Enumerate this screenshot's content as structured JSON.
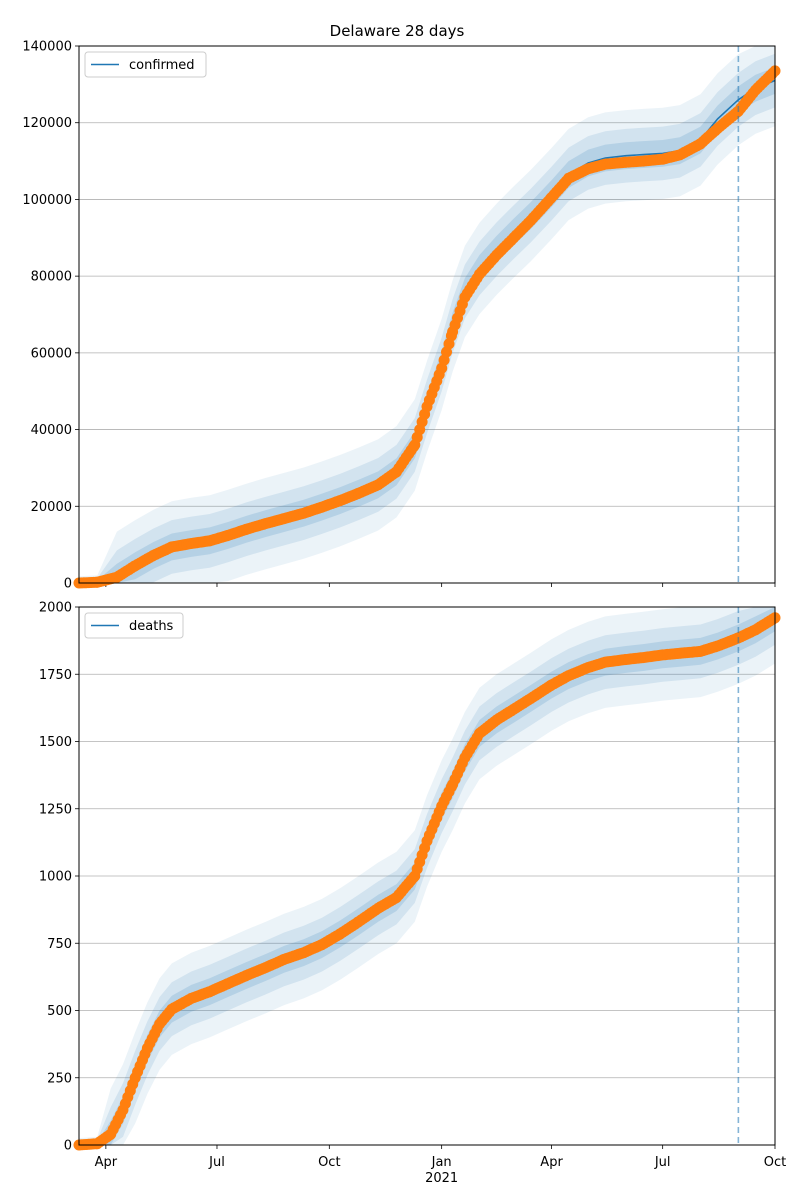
{
  "chart_data": [
    {
      "type": "line",
      "title": "Delaware 28 days",
      "series": [
        {
          "name": "confirmed",
          "kind": "model-line",
          "color": "#1f77b4"
        },
        {
          "kind": "observed-points",
          "color": "#ff7f0e"
        }
      ],
      "ylim": [
        0,
        140000
      ],
      "yticks": [
        0,
        20000,
        40000,
        60000,
        80000,
        100000,
        120000,
        140000
      ],
      "ytick_labels": [
        "0",
        "20000",
        "40000",
        "60000",
        "80000",
        "100000",
        "120000",
        "140000"
      ],
      "grid": "horizontal",
      "legend": "top-left",
      "forecast_start": "2021-09-01",
      "model_points": [
        [
          "2020-03-10",
          0
        ],
        [
          "2020-03-25",
          200
        ],
        [
          "2020-04-10",
          1500
        ],
        [
          "2020-04-25",
          4500
        ],
        [
          "2020-05-10",
          7200
        ],
        [
          "2020-05-25",
          9400
        ],
        [
          "2020-06-10",
          10300
        ],
        [
          "2020-06-25",
          11000
        ],
        [
          "2020-07-10",
          12400
        ],
        [
          "2020-07-25",
          14000
        ],
        [
          "2020-08-10",
          15500
        ],
        [
          "2020-08-25",
          16800
        ],
        [
          "2020-09-10",
          18200
        ],
        [
          "2020-09-25",
          19800
        ],
        [
          "2020-10-10",
          21500
        ],
        [
          "2020-10-25",
          23400
        ],
        [
          "2020-11-10",
          25600
        ],
        [
          "2020-11-25",
          29000
        ],
        [
          "2020-12-10",
          36000
        ],
        [
          "2020-12-20",
          46000
        ],
        [
          "2021-01-01",
          57000
        ],
        [
          "2021-01-10",
          67000
        ],
        [
          "2021-01-20",
          76000
        ],
        [
          "2021-02-01",
          82000
        ],
        [
          "2021-02-15",
          87000
        ],
        [
          "2021-03-01",
          91500
        ],
        [
          "2021-03-15",
          95800
        ],
        [
          "2021-04-01",
          101500
        ],
        [
          "2021-04-15",
          106500
        ],
        [
          "2021-05-01",
          109500
        ],
        [
          "2021-05-15",
          110800
        ],
        [
          "2021-06-01",
          111400
        ],
        [
          "2021-06-15",
          111700
        ],
        [
          "2021-07-01",
          112000
        ],
        [
          "2021-07-15",
          112700
        ],
        [
          "2021-08-01",
          115500
        ],
        [
          "2021-08-15",
          121000
        ],
        [
          "2021-09-01",
          126000
        ],
        [
          "2021-09-15",
          129000
        ],
        [
          "2021-10-01",
          131000
        ]
      ],
      "observed_points": [
        [
          "2020-03-10",
          0
        ],
        [
          "2020-03-25",
          200
        ],
        [
          "2020-04-10",
          1500
        ],
        [
          "2020-04-25",
          4500
        ],
        [
          "2020-05-10",
          7200
        ],
        [
          "2020-05-25",
          9400
        ],
        [
          "2020-06-10",
          10300
        ],
        [
          "2020-06-25",
          11000
        ],
        [
          "2020-07-10",
          12400
        ],
        [
          "2020-07-25",
          14000
        ],
        [
          "2020-08-10",
          15500
        ],
        [
          "2020-08-25",
          16800
        ],
        [
          "2020-09-10",
          18200
        ],
        [
          "2020-09-25",
          19800
        ],
        [
          "2020-10-10",
          21500
        ],
        [
          "2020-10-25",
          23400
        ],
        [
          "2020-11-10",
          25600
        ],
        [
          "2020-11-25",
          29000
        ],
        [
          "2020-12-10",
          36000
        ],
        [
          "2020-12-20",
          46000
        ],
        [
          "2021-01-01",
          56000
        ],
        [
          "2021-01-10",
          65500
        ],
        [
          "2021-01-20",
          74500
        ],
        [
          "2021-02-01",
          80500
        ],
        [
          "2021-02-15",
          85500
        ],
        [
          "2021-03-01",
          90000
        ],
        [
          "2021-03-15",
          94500
        ],
        [
          "2021-04-01",
          100500
        ],
        [
          "2021-04-15",
          105500
        ],
        [
          "2021-05-01",
          108000
        ],
        [
          "2021-05-15",
          109200
        ],
        [
          "2021-06-01",
          109700
        ],
        [
          "2021-06-15",
          110000
        ],
        [
          "2021-07-01",
          110500
        ],
        [
          "2021-07-15",
          111600
        ],
        [
          "2021-08-01",
          114500
        ],
        [
          "2021-08-15",
          118500
        ],
        [
          "2021-09-01",
          123000
        ],
        [
          "2021-09-15",
          128500
        ],
        [
          "2021-10-01",
          133500
        ]
      ]
    },
    {
      "type": "line",
      "series": [
        {
          "name": "deaths",
          "kind": "model-line",
          "color": "#1f77b4"
        },
        {
          "kind": "observed-points",
          "color": "#ff7f0e"
        }
      ],
      "ylim": [
        0,
        2000
      ],
      "yticks": [
        0,
        250,
        500,
        750,
        1000,
        1250,
        1500,
        1750,
        2000
      ],
      "ytick_labels": [
        "0",
        "250",
        "500",
        "750",
        "1000",
        "1250",
        "1500",
        "1750",
        "2000"
      ],
      "grid": "horizontal",
      "legend": "top-left",
      "forecast_start": "2021-09-01",
      "model_points": [
        [
          "2020-03-10",
          0
        ],
        [
          "2020-03-25",
          5
        ],
        [
          "2020-04-05",
          40
        ],
        [
          "2020-04-15",
          130
        ],
        [
          "2020-04-25",
          250
        ],
        [
          "2020-05-05",
          360
        ],
        [
          "2020-05-15",
          450
        ],
        [
          "2020-05-25",
          505
        ],
        [
          "2020-06-10",
          545
        ],
        [
          "2020-06-25",
          570
        ],
        [
          "2020-07-10",
          600
        ],
        [
          "2020-07-25",
          630
        ],
        [
          "2020-08-10",
          660
        ],
        [
          "2020-08-25",
          690
        ],
        [
          "2020-09-10",
          715
        ],
        [
          "2020-09-25",
          745
        ],
        [
          "2020-10-10",
          785
        ],
        [
          "2020-10-25",
          830
        ],
        [
          "2020-11-10",
          880
        ],
        [
          "2020-11-25",
          920
        ],
        [
          "2020-12-10",
          1000
        ],
        [
          "2020-12-20",
          1130
        ],
        [
          "2021-01-01",
          1260
        ],
        [
          "2021-01-10",
          1340
        ],
        [
          "2021-01-20",
          1440
        ],
        [
          "2021-02-01",
          1530
        ],
        [
          "2021-02-15",
          1580
        ],
        [
          "2021-03-01",
          1620
        ],
        [
          "2021-03-15",
          1660
        ],
        [
          "2021-04-01",
          1710
        ],
        [
          "2021-04-15",
          1745
        ],
        [
          "2021-05-01",
          1775
        ],
        [
          "2021-05-15",
          1795
        ],
        [
          "2021-06-01",
          1805
        ],
        [
          "2021-06-15",
          1812
        ],
        [
          "2021-07-01",
          1822
        ],
        [
          "2021-07-15",
          1828
        ],
        [
          "2021-08-01",
          1835
        ],
        [
          "2021-08-15",
          1855
        ],
        [
          "2021-09-01",
          1885
        ],
        [
          "2021-09-15",
          1915
        ],
        [
          "2021-10-01",
          1960
        ]
      ],
      "observed_points": [
        [
          "2020-03-10",
          0
        ],
        [
          "2020-03-25",
          5
        ],
        [
          "2020-04-05",
          40
        ],
        [
          "2020-04-15",
          130
        ],
        [
          "2020-04-25",
          250
        ],
        [
          "2020-05-05",
          360
        ],
        [
          "2020-05-15",
          450
        ],
        [
          "2020-05-25",
          505
        ],
        [
          "2020-06-10",
          545
        ],
        [
          "2020-06-25",
          570
        ],
        [
          "2020-07-10",
          600
        ],
        [
          "2020-07-25",
          630
        ],
        [
          "2020-08-10",
          660
        ],
        [
          "2020-08-25",
          690
        ],
        [
          "2020-09-10",
          715
        ],
        [
          "2020-09-25",
          745
        ],
        [
          "2020-10-10",
          785
        ],
        [
          "2020-10-25",
          830
        ],
        [
          "2020-11-10",
          880
        ],
        [
          "2020-11-25",
          920
        ],
        [
          "2020-12-10",
          1000
        ],
        [
          "2020-12-20",
          1130
        ],
        [
          "2021-01-01",
          1260
        ],
        [
          "2021-01-10",
          1340
        ],
        [
          "2021-01-20",
          1440
        ],
        [
          "2021-02-01",
          1530
        ],
        [
          "2021-02-15",
          1580
        ],
        [
          "2021-03-01",
          1620
        ],
        [
          "2021-03-15",
          1660
        ],
        [
          "2021-04-01",
          1710
        ],
        [
          "2021-04-15",
          1745
        ],
        [
          "2021-05-01",
          1775
        ],
        [
          "2021-05-15",
          1795
        ],
        [
          "2021-06-01",
          1805
        ],
        [
          "2021-06-15",
          1812
        ],
        [
          "2021-07-01",
          1822
        ],
        [
          "2021-07-15",
          1828
        ],
        [
          "2021-08-01",
          1835
        ],
        [
          "2021-08-15",
          1855
        ],
        [
          "2021-09-01",
          1885
        ],
        [
          "2021-09-15",
          1915
        ],
        [
          "2021-10-01",
          1960
        ]
      ]
    }
  ],
  "x_axis": {
    "start": "2020-03-10",
    "end": "2021-10-01",
    "ticks": [
      {
        "date": "2020-04-01",
        "label": "Apr"
      },
      {
        "date": "2020-07-01",
        "label": "Jul"
      },
      {
        "date": "2020-10-01",
        "label": "Oct"
      },
      {
        "date": "2021-01-01",
        "label": "Jan",
        "year_label": "2021"
      },
      {
        "date": "2021-04-01",
        "label": "Apr"
      },
      {
        "date": "2021-07-01",
        "label": "Jul"
      },
      {
        "date": "2021-10-01",
        "label": "Oct"
      }
    ]
  }
}
